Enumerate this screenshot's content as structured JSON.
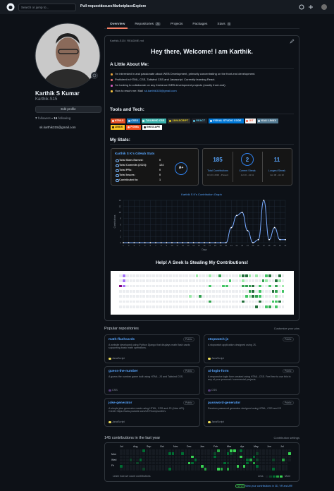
{
  "header": {
    "search": "Search or jump to...",
    "nav": [
      "Pull requests",
      "Issues",
      "Marketplace",
      "Explore"
    ]
  },
  "profile": {
    "name": "Karthik S Kumar",
    "username": "Karthik-S15",
    "edit": "Edit profile",
    "followers": 7,
    "followers_label": "followers",
    "following": 15,
    "following_label": "following",
    "email": "sk.karthik315@gmail.com"
  },
  "tabs": [
    {
      "label": "Overview"
    },
    {
      "label": "Repositories",
      "count": 24
    },
    {
      "label": "Projects"
    },
    {
      "label": "Packages"
    },
    {
      "label": "Stars",
      "count": 4
    }
  ],
  "readme": {
    "path": "Karthik-S15 / README.md",
    "title": "Hey there, Welcome! I am Karthik.",
    "about_heading": "A Little About Me:",
    "bullets": [
      "I'm interested in and passionate about WEB Development, primarily concentrating on the front-end development.",
      "Proficient in HTML, CSS, Tailwind CSS and Javascript. Currently learning React.",
      "I'm looking to collaborate on any freelance WEB development projects (mostly front-end).",
      "How to reach me: Mail"
    ],
    "mail_link": "sk.karthik315@gmail.com",
    "tools_heading": "Tools and Tech:",
    "badges": [
      {
        "label": "HTML5",
        "color": "#e34f26",
        "text_color": "#ffffff"
      },
      {
        "label": "CSS3",
        "color": "#1572b6",
        "text_color": "#ffffff"
      },
      {
        "label": "TAILWIND CSS",
        "color": "#38b2ac",
        "text_color": "#ffffff"
      },
      {
        "label": "JAVASCRIPT",
        "color": "#323330",
        "text_color": "#f7df1e"
      },
      {
        "label": "REACT",
        "color": "#20232a",
        "text_color": "#61dafb"
      },
      {
        "label": "VISUAL STUDIO CODE",
        "color": "#0078d7",
        "text_color": "#ffffff"
      },
      {
        "label": "GIT",
        "color": "#f8f8f8",
        "text_color": "#f05033"
      },
      {
        "label": "KALI LINUX",
        "color": "#557c94",
        "text_color": "#ffffff"
      },
      {
        "label": "LINUX",
        "color": "#fcc624",
        "text_color": "#000000"
      },
      {
        "label": "FIGMA",
        "color": "#f24e1e",
        "text_color": "#ffffff"
      },
      {
        "label": "INKSCAPE",
        "color": "#ffffff",
        "text_color": "#000000"
      }
    ],
    "stats_heading": "My Stats:",
    "stats_card": {
      "title": "Karthik S K's GitHub Stats",
      "rows": [
        {
          "label": "Total Stars Earned:",
          "value": 0
        },
        {
          "label": "Total Commits (2022):",
          "value": 124
        },
        {
          "label": "Total PRs:",
          "value": 0
        },
        {
          "label": "Total Issues:",
          "value": 0
        },
        {
          "label": "Contributed to:",
          "value": 1
        }
      ],
      "grade": "A+"
    },
    "streak": [
      {
        "value": 185,
        "label": "Total Contributions",
        "dates": "Oct 23, 2016 - Present"
      },
      {
        "value": 2,
        "label": "Current Streak",
        "dates": "Jul 10 - Jul 11"
      },
      {
        "value": 11,
        "label": "Longest Streak",
        "dates": "Jun 30 - Jul 10"
      }
    ],
    "graph": {
      "type": "line",
      "title": "Karthik S K's Contribution Graph",
      "x_label": "Days",
      "y_label": "Contributions",
      "color": "#77aaff",
      "x": [
        1,
        2,
        3,
        4,
        5,
        6,
        7,
        8,
        9,
        10,
        11,
        12,
        13,
        14,
        15,
        16,
        17,
        18,
        19,
        20,
        21,
        22,
        23,
        24,
        25,
        26,
        27,
        28,
        29,
        30,
        31
      ],
      "values": [
        0,
        0,
        0,
        0,
        0,
        0,
        0,
        0,
        0,
        0,
        0,
        0,
        0,
        0,
        0,
        0,
        0,
        0,
        0,
        0,
        5,
        9,
        10,
        4,
        0,
        1,
        14,
        1,
        5,
        1,
        1
      ],
      "xlim": [
        1,
        31
      ],
      "xticks": [
        1,
        2,
        3,
        4,
        5,
        6,
        7,
        8,
        9,
        10,
        11,
        12,
        13,
        14,
        15,
        16,
        17,
        18,
        19,
        20,
        21,
        22,
        23,
        24,
        25,
        26,
        27,
        28,
        29,
        30,
        31
      ],
      "ylim": [
        0,
        14
      ],
      "yticks": [
        0,
        2,
        4,
        6,
        8,
        10,
        12,
        14
      ],
      "grid": true
    },
    "snake_heading": "Help! A Snek Is Stealing My Contributions!"
  },
  "pinned": {
    "heading": "Popular repositories",
    "customize": "Customize your pins",
    "repos": [
      {
        "name": "math-flashcards",
        "visibility": "Public",
        "description": "A website developed using Python Django that displays math flash cards supporting basic math operations.",
        "language": "JavaScript",
        "language_color": "#f1e05a"
      },
      {
        "name": "stopwatch-js",
        "visibility": "Public",
        "description": "A stopwatch application designed using JS.",
        "language": "JavaScript",
        "language_color": "#f1e05a"
      },
      {
        "name": "guess-the-number",
        "visibility": "Public",
        "description": "A guess the number game built using HTML, JS and Tailwind CSS.",
        "language": "CSS",
        "language_color": "#563d7c"
      },
      {
        "name": "ui-login-form",
        "visibility": "Public",
        "description": "A responsive login form created using HTML, CSS. Feel free to use this in any of your personal / commercial projects.",
        "language": "CSS",
        "language_color": "#563d7c"
      },
      {
        "name": "joke-generator",
        "visibility": "Public",
        "description": "A simple joke generator made using HTML, CSS and JS (Joke API). Credit: https://www.youtube.com/c/DThompsonDev",
        "language": "JavaScript",
        "language_color": "#f1e05a"
      },
      {
        "name": "password-generator",
        "visibility": "Public",
        "description": "Random password generator designed using HTML, CSS and JS",
        "language": "JavaScript",
        "language_color": "#f1e05a"
      }
    ]
  },
  "contributions": {
    "heading": "145 contributions in the last year",
    "settings": "Contribution settings",
    "months": [
      "Jul",
      "Aug",
      "Sep",
      "Oct",
      "Nov",
      "Dec",
      "Jan",
      "Feb",
      "Mar",
      "Apr",
      "May",
      "Jun",
      "Jul"
    ],
    "days": [
      "Mon",
      "Wed",
      "Fri"
    ],
    "learn": "Learn how we count contributions",
    "less": "Less",
    "more": "More",
    "new_badge": "NEW!",
    "new_text": "View your contributions in 3D, VR and AR!"
  }
}
